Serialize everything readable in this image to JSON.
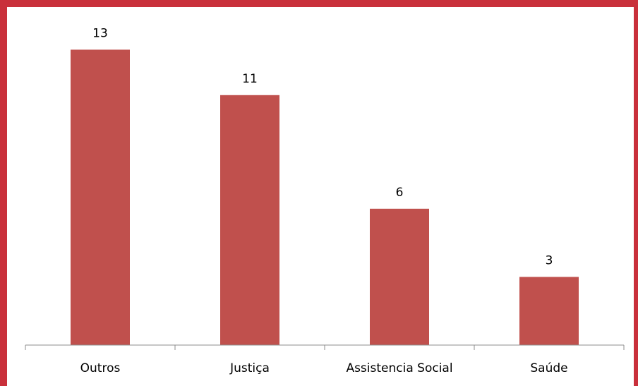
{
  "chart_data": {
    "type": "bar",
    "categories": [
      "Outros",
      "Justiça",
      "Assistencia Social",
      "Saúde"
    ],
    "values": [
      13,
      11,
      6,
      3
    ],
    "title": "",
    "xlabel": "",
    "ylabel": "",
    "ylim": [
      0,
      14
    ],
    "grid": false,
    "data_labels": true,
    "bar_color": "#c0504d",
    "border_color": "#c9303b"
  }
}
